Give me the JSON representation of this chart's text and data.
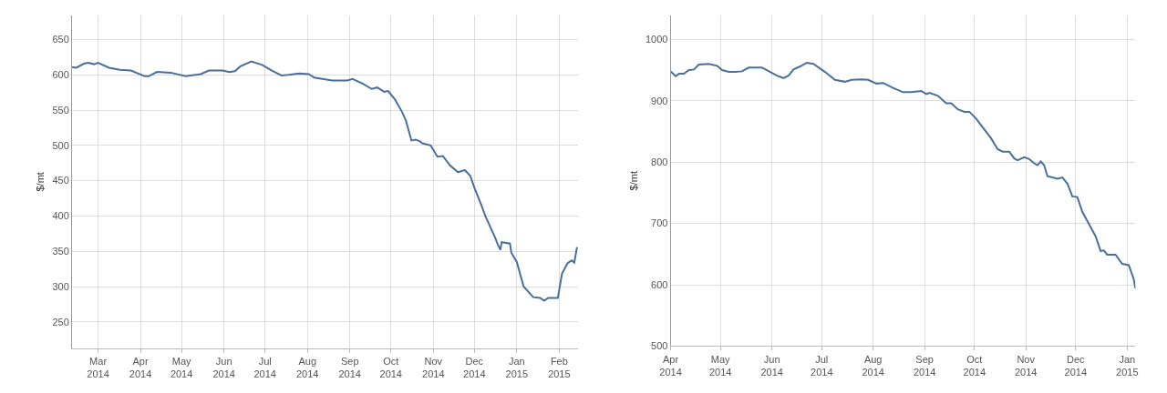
{
  "chart_data": [
    {
      "type": "line",
      "ylabel": "$/mt",
      "grid": true,
      "marker": "none",
      "line_style": "solid",
      "xlim": [
        "2014-02-10",
        "2015-02-15"
      ],
      "ylim": [
        213,
        684
      ],
      "xticks": [
        {
          "value": "2014-03-01",
          "label": "Mar\n2014"
        },
        {
          "value": "2014-04-01",
          "label": "Apr\n2014"
        },
        {
          "value": "2014-05-01",
          "label": "May\n2014"
        },
        {
          "value": "2014-06-01",
          "label": "Jun\n2014"
        },
        {
          "value": "2014-07-01",
          "label": "Jul\n2014"
        },
        {
          "value": "2014-08-01",
          "label": "Aug\n2014"
        },
        {
          "value": "2014-09-01",
          "label": "Sep\n2014"
        },
        {
          "value": "2014-10-01",
          "label": "Oct\n2014"
        },
        {
          "value": "2014-11-01",
          "label": "Nov\n2014"
        },
        {
          "value": "2014-12-01",
          "label": "Dec\n2014"
        },
        {
          "value": "2015-01-01",
          "label": "Jan\n2015"
        },
        {
          "value": "2015-02-01",
          "label": "Feb\n2015"
        }
      ],
      "yticks": [
        250,
        300,
        350,
        400,
        450,
        500,
        550,
        600,
        650
      ],
      "x": [
        "2014-02-10",
        "2014-02-13",
        "2014-02-19",
        "2014-02-22",
        "2014-02-26",
        "2014-03-01",
        "2014-03-09",
        "2014-03-17",
        "2014-03-25",
        "2014-03-30",
        "2014-04-04",
        "2014-04-07",
        "2014-04-13",
        "2014-04-23",
        "2014-05-04",
        "2014-05-15",
        "2014-05-21",
        "2014-05-31",
        "2014-06-05",
        "2014-06-09",
        "2014-06-13",
        "2014-06-21",
        "2014-06-29",
        "2014-07-06",
        "2014-07-13",
        "2014-07-18",
        "2014-07-26",
        "2014-08-02",
        "2014-08-06",
        "2014-08-19",
        "2014-08-30",
        "2014-09-03",
        "2014-09-10",
        "2014-09-17",
        "2014-09-21",
        "2014-09-26",
        "2014-09-29",
        "2014-10-04",
        "2014-10-09",
        "2014-10-12",
        "2014-10-16",
        "2014-10-19",
        "2014-10-22",
        "2014-10-24",
        "2014-10-30",
        "2014-11-04",
        "2014-11-08",
        "2014-11-13",
        "2014-11-19",
        "2014-11-24",
        "2014-11-28",
        "2014-12-01",
        "2014-12-06",
        "2014-12-09",
        "2014-12-16",
        "2014-12-18",
        "2014-12-20",
        "2014-12-21",
        "2014-12-27",
        "2014-12-28",
        "2015-01-01",
        "2015-01-06",
        "2015-01-13",
        "2015-01-18",
        "2015-01-21",
        "2015-01-24",
        "2015-01-31",
        "2015-02-03",
        "2015-02-07",
        "2015-02-10",
        "2015-02-12",
        "2015-02-14"
      ],
      "series": [
        {
          "color": "#4a6f9c",
          "values": [
            611,
            610,
            616,
            617,
            615,
            617,
            610,
            607,
            606,
            602,
            598,
            598,
            604,
            603,
            598,
            601,
            606,
            606,
            604,
            605,
            612,
            619,
            614,
            606,
            599,
            600,
            602,
            601,
            596,
            592,
            592,
            594,
            588,
            580,
            582,
            576,
            577,
            565,
            548,
            535,
            507,
            508,
            506,
            503,
            500,
            484,
            485,
            472,
            462,
            465,
            457,
            440,
            416,
            400,
            370,
            360,
            352,
            363,
            361,
            348,
            335,
            300,
            285,
            284,
            280,
            284,
            284,
            318,
            333,
            337,
            334,
            356
          ]
        }
      ]
    },
    {
      "type": "line",
      "ylabel": "$/mt",
      "grid": true,
      "marker": "none",
      "line_style": "solid",
      "xlim": [
        "2014-04-01",
        "2015-01-06"
      ],
      "ylim": [
        500,
        1039
      ],
      "xticks": [
        {
          "value": "2014-04-01",
          "label": "Apr\n2014"
        },
        {
          "value": "2014-05-01",
          "label": "May\n2014"
        },
        {
          "value": "2014-06-01",
          "label": "Jun\n2014"
        },
        {
          "value": "2014-07-01",
          "label": "Jul\n2014"
        },
        {
          "value": "2014-08-01",
          "label": "Aug\n2014"
        },
        {
          "value": "2014-09-01",
          "label": "Sep\n2014"
        },
        {
          "value": "2014-10-01",
          "label": "Oct\n2014"
        },
        {
          "value": "2014-11-01",
          "label": "Nov\n2014"
        },
        {
          "value": "2014-12-01",
          "label": "Dec\n2014"
        },
        {
          "value": "2015-01-01",
          "label": "Jan\n2015"
        }
      ],
      "yticks": [
        500,
        600,
        700,
        800,
        900,
        1000
      ],
      "x": [
        "2014-04-01",
        "2014-04-04",
        "2014-04-06",
        "2014-04-09",
        "2014-04-12",
        "2014-04-15",
        "2014-04-18",
        "2014-04-24",
        "2014-04-29",
        "2014-05-02",
        "2014-05-06",
        "2014-05-10",
        "2014-05-14",
        "2014-05-18",
        "2014-05-26",
        "2014-05-29",
        "2014-06-04",
        "2014-06-08",
        "2014-06-11",
        "2014-06-14",
        "2014-06-18",
        "2014-06-22",
        "2014-06-26",
        "2014-07-03",
        "2014-07-09",
        "2014-07-15",
        "2014-07-19",
        "2014-07-25",
        "2014-07-29",
        "2014-08-03",
        "2014-08-07",
        "2014-08-13",
        "2014-08-19",
        "2014-08-24",
        "2014-08-30",
        "2014-09-02",
        "2014-09-04",
        "2014-09-09",
        "2014-09-14",
        "2014-09-17",
        "2014-09-21",
        "2014-09-25",
        "2014-09-28",
        "2014-10-02",
        "2014-10-07",
        "2014-10-11",
        "2014-10-15",
        "2014-10-18",
        "2014-10-22",
        "2014-10-25",
        "2014-10-27",
        "2014-10-31",
        "2014-11-03",
        "2014-11-06",
        "2014-11-08",
        "2014-11-10",
        "2014-11-12",
        "2014-11-14",
        "2014-11-17",
        "2014-11-20",
        "2014-11-23",
        "2014-11-26",
        "2014-11-29",
        "2014-12-02",
        "2014-12-05",
        "2014-12-09",
        "2014-12-13",
        "2014-12-16",
        "2014-12-18",
        "2014-12-20",
        "2014-12-23",
        "2014-12-25",
        "2014-12-29",
        "2015-01-02",
        "2015-01-05",
        "2015-01-06"
      ],
      "series": [
        {
          "color": "#4a6f9c",
          "values": [
            948,
            940,
            944,
            944,
            950,
            951,
            959,
            960,
            957,
            950,
            947,
            947,
            948,
            954,
            954,
            950,
            941,
            937,
            941,
            951,
            956,
            962,
            960,
            947,
            934,
            931,
            934,
            935,
            934,
            928,
            929,
            921,
            914,
            914,
            916,
            911,
            913,
            908,
            896,
            896,
            886,
            882,
            882,
            871,
            853,
            839,
            821,
            817,
            817,
            806,
            803,
            808,
            805,
            798,
            795,
            801,
            795,
            777,
            775,
            773,
            775,
            765,
            744,
            743,
            719,
            699,
            679,
            655,
            656,
            649,
            649,
            649,
            634,
            632,
            609,
            594
          ]
        }
      ]
    }
  ]
}
